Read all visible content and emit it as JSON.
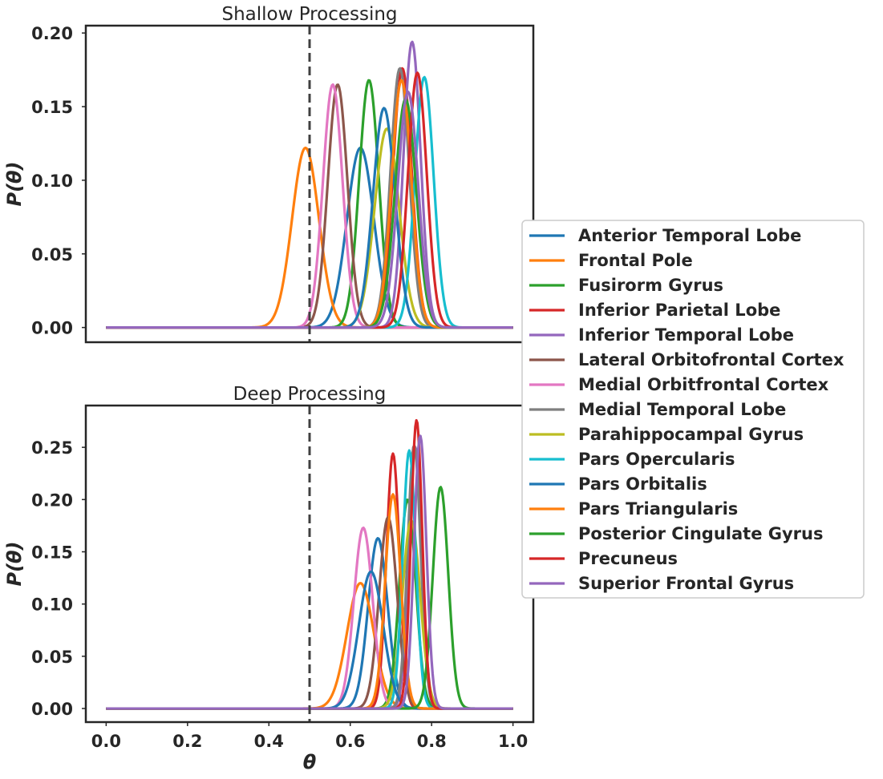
{
  "chart_data": [
    {
      "type": "line",
      "title": "Shallow Processing",
      "xlabel": "",
      "ylabel": "P(θ)",
      "xlim": [
        -0.05,
        1.05
      ],
      "ylim": [
        -0.01,
        0.205
      ],
      "xticks": [
        0.0,
        0.2,
        0.4,
        0.6,
        0.8,
        1.0
      ],
      "yticks": [
        0.0,
        0.05,
        0.1,
        0.15,
        0.2
      ],
      "ytick_labels": [
        "0.00",
        "0.05",
        "0.10",
        "0.15",
        "0.20"
      ],
      "xtick_labels": [],
      "reference_line": {
        "x": 0.5,
        "style": "dashed"
      },
      "grid": false,
      "series": [
        {
          "name": "Anterior Temporal Lobe",
          "peak_x": 0.625,
          "peak_y": 0.122,
          "sd": 0.033
        },
        {
          "name": "Frontal Pole",
          "peak_x": 0.49,
          "peak_y": 0.122,
          "sd": 0.033
        },
        {
          "name": "Fusirorm Gyrus",
          "peak_x": 0.646,
          "peak_y": 0.168,
          "sd": 0.024
        },
        {
          "name": "Inferior Parietal Lobe",
          "peak_x": 0.728,
          "peak_y": 0.176,
          "sd": 0.023
        },
        {
          "name": "Inferior Temporal Lobe",
          "peak_x": 0.752,
          "peak_y": 0.194,
          "sd": 0.021
        },
        {
          "name": "Lateral Orbitofrontal Cortex",
          "peak_x": 0.569,
          "peak_y": 0.165,
          "sd": 0.024
        },
        {
          "name": "Medial Orbitfrontal Cortex",
          "peak_x": 0.557,
          "peak_y": 0.165,
          "sd": 0.024
        },
        {
          "name": "Medial Temporal Lobe",
          "peak_x": 0.722,
          "peak_y": 0.176,
          "sd": 0.023
        },
        {
          "name": "Parahippocampal Gyrus",
          "peak_x": 0.69,
          "peak_y": 0.135,
          "sd": 0.03
        },
        {
          "name": "Pars Opercularis",
          "peak_x": 0.782,
          "peak_y": 0.17,
          "sd": 0.023
        },
        {
          "name": "Pars Orbitalis",
          "peak_x": 0.683,
          "peak_y": 0.149,
          "sd": 0.027
        },
        {
          "name": "Pars Triangularis",
          "peak_x": 0.726,
          "peak_y": 0.168,
          "sd": 0.024
        },
        {
          "name": "Posterior Cingulate Gyrus",
          "peak_x": 0.736,
          "peak_y": 0.155,
          "sd": 0.026
        },
        {
          "name": "Precuneus",
          "peak_x": 0.765,
          "peak_y": 0.173,
          "sd": 0.023
        },
        {
          "name": "Superior Frontal Gyrus",
          "peak_x": 0.742,
          "peak_y": 0.16,
          "sd": 0.025
        }
      ]
    },
    {
      "type": "line",
      "title": "Deep Processing",
      "xlabel": "θ",
      "ylabel": "P(θ)",
      "xlim": [
        -0.05,
        1.05
      ],
      "ylim": [
        -0.013,
        0.29
      ],
      "xticks": [
        0.0,
        0.2,
        0.4,
        0.6,
        0.8,
        1.0
      ],
      "xtick_labels": [
        "0.0",
        "0.2",
        "0.4",
        "0.6",
        "0.8",
        "1.0"
      ],
      "yticks": [
        0.0,
        0.05,
        0.1,
        0.15,
        0.2,
        0.25
      ],
      "ytick_labels": [
        "0.00",
        "0.05",
        "0.10",
        "0.15",
        "0.20",
        "0.25"
      ],
      "reference_line": {
        "x": 0.5,
        "style": "dashed"
      },
      "grid": false,
      "series": [
        {
          "name": "Anterior Temporal Lobe",
          "peak_x": 0.668,
          "peak_y": 0.163,
          "sd": 0.024
        },
        {
          "name": "Frontal Pole",
          "peak_x": 0.625,
          "peak_y": 0.12,
          "sd": 0.033
        },
        {
          "name": "Fusirorm Gyrus",
          "peak_x": 0.741,
          "peak_y": 0.2,
          "sd": 0.02
        },
        {
          "name": "Inferior Parietal Lobe",
          "peak_x": 0.705,
          "peak_y": 0.244,
          "sd": 0.016
        },
        {
          "name": "Inferior Temporal Lobe",
          "peak_x": 0.76,
          "peak_y": 0.25,
          "sd": 0.016
        },
        {
          "name": "Lateral Orbitofrontal Cortex",
          "peak_x": 0.693,
          "peak_y": 0.183,
          "sd": 0.022
        },
        {
          "name": "Medial Orbitfrontal Cortex",
          "peak_x": 0.632,
          "peak_y": 0.173,
          "sd": 0.023
        },
        {
          "name": "Medial Temporal Lobe",
          "peak_x": 0.757,
          "peak_y": 0.252,
          "sd": 0.016
        },
        {
          "name": "Parahippocampal Gyrus",
          "peak_x": 0.75,
          "peak_y": 0.18,
          "sd": 0.022
        },
        {
          "name": "Pars Opercularis",
          "peak_x": 0.745,
          "peak_y": 0.247,
          "sd": 0.016
        },
        {
          "name": "Pars Orbitalis",
          "peak_x": 0.651,
          "peak_y": 0.131,
          "sd": 0.03
        },
        {
          "name": "Pars Triangularis",
          "peak_x": 0.705,
          "peak_y": 0.205,
          "sd": 0.019
        },
        {
          "name": "Posterior Cingulate Gyrus",
          "peak_x": 0.822,
          "peak_y": 0.212,
          "sd": 0.019
        },
        {
          "name": "Precuneus",
          "peak_x": 0.763,
          "peak_y": 0.276,
          "sd": 0.014
        },
        {
          "name": "Superior Frontal Gyrus",
          "peak_x": 0.772,
          "peak_y": 0.261,
          "sd": 0.015
        }
      ]
    }
  ],
  "legend": {
    "placement": "right-center",
    "entries": [
      "Anterior Temporal Lobe",
      "Frontal Pole",
      "Fusirorm Gyrus",
      "Inferior Parietal Lobe",
      "Inferior Temporal Lobe",
      "Lateral Orbitofrontal Cortex",
      "Medial Orbitfrontal Cortex",
      "Medial Temporal Lobe",
      "Parahippocampal Gyrus",
      "Pars Opercularis",
      "Pars Orbitalis",
      "Pars Triangularis",
      "Posterior Cingulate Gyrus",
      "Precuneus",
      "Superior Frontal Gyrus"
    ]
  },
  "colors": {
    "series": [
      "#1f77b4",
      "#ff7f0e",
      "#2ca02c",
      "#d62728",
      "#9467bd",
      "#8c564b",
      "#e377c2",
      "#7f7f7f",
      "#bcbd22",
      "#17becf",
      "#1f77b4",
      "#ff7f0e",
      "#2ca02c",
      "#d62728",
      "#9467bd"
    ],
    "axes": "#262626",
    "reference_line": "#404040"
  }
}
